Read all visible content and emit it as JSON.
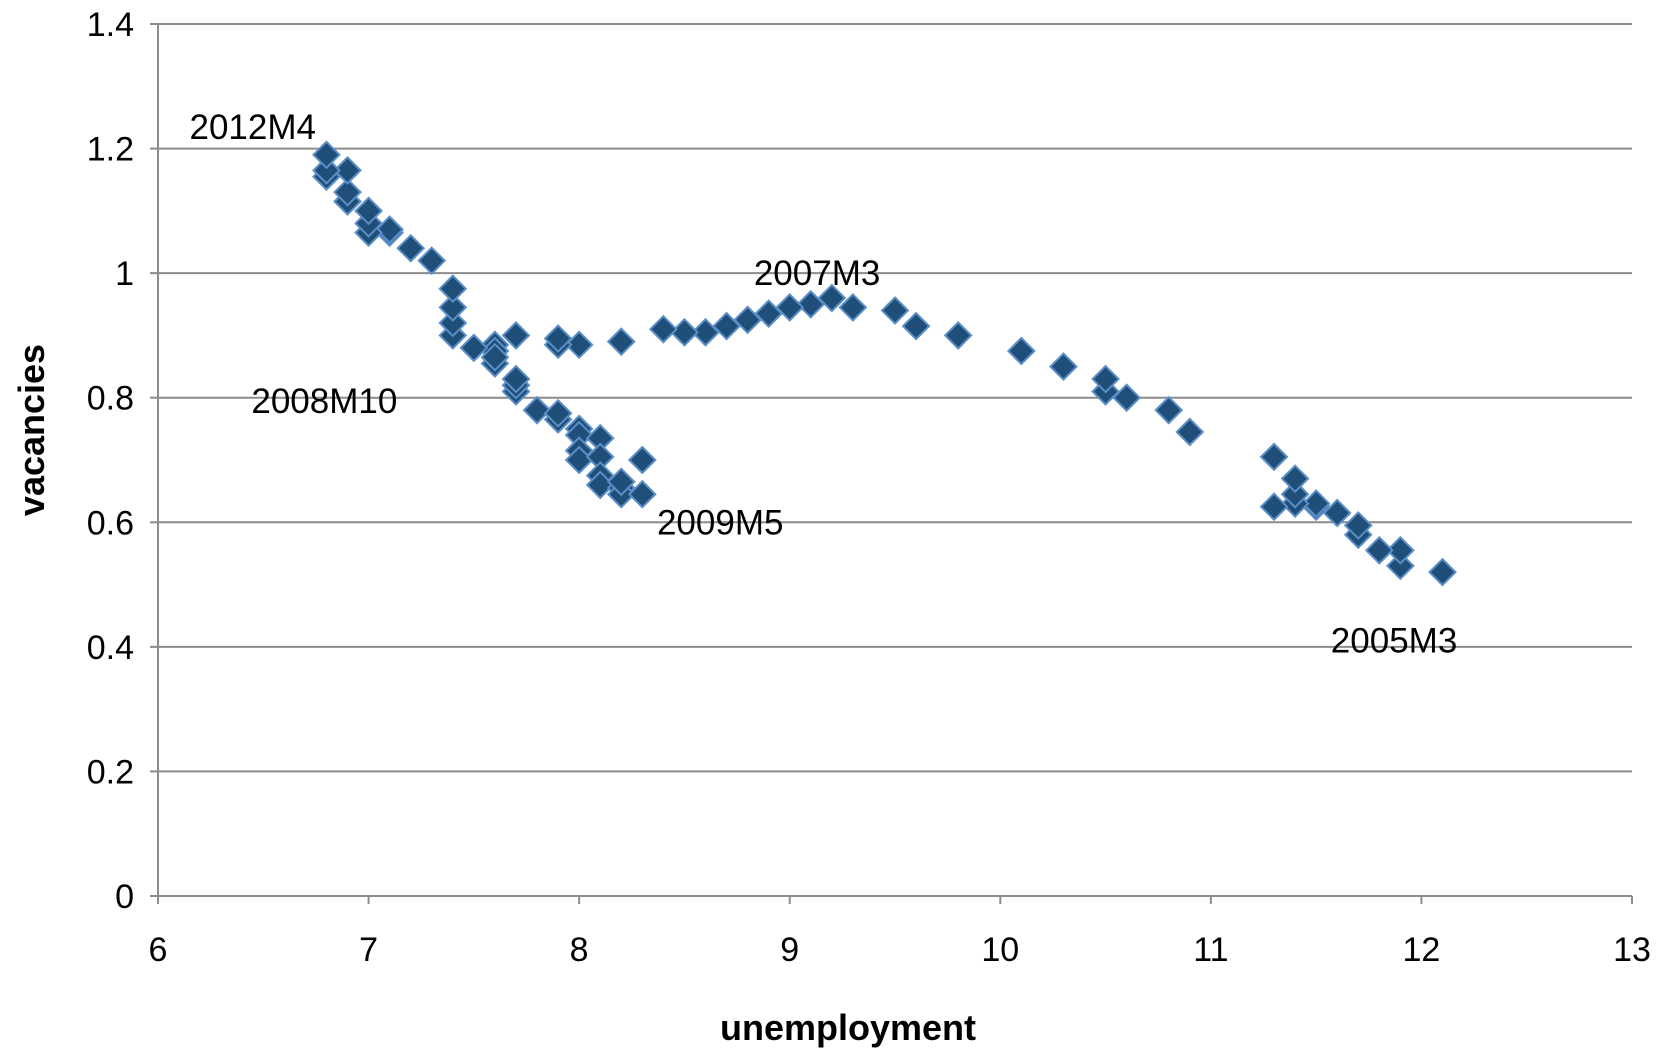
{
  "chart_data": {
    "type": "scatter",
    "title": "",
    "xlabel": "unemployment",
    "ylabel": "vacancies",
    "xlim": [
      6,
      13
    ],
    "ylim": [
      0,
      1.4
    ],
    "x_ticks": [
      "6",
      "7",
      "8",
      "9",
      "10",
      "11",
      "12",
      "13"
    ],
    "y_ticks": [
      "0",
      "0.2",
      "0.4",
      "0.6",
      "0.8",
      "1",
      "1.2",
      "1.4"
    ],
    "grid": "horizontal",
    "legend": "none",
    "marker_color": "#1f4e79",
    "marker_edge_color": "#5b8ec7",
    "marker_shape": "diamond",
    "series": [
      {
        "points": [
          [
            12.1,
            0.52
          ],
          [
            11.9,
            0.53
          ],
          [
            11.9,
            0.555
          ],
          [
            11.8,
            0.555
          ],
          [
            11.7,
            0.58
          ],
          [
            11.7,
            0.595
          ],
          [
            11.6,
            0.615
          ],
          [
            11.5,
            0.625
          ],
          [
            11.5,
            0.63
          ],
          [
            11.4,
            0.63
          ],
          [
            11.4,
            0.645
          ],
          [
            11.4,
            0.67
          ],
          [
            11.3,
            0.625
          ],
          [
            11.3,
            0.705
          ],
          [
            10.9,
            0.745
          ],
          [
            10.8,
            0.78
          ],
          [
            10.6,
            0.8
          ],
          [
            10.5,
            0.81
          ],
          [
            10.5,
            0.83
          ],
          [
            10.3,
            0.85
          ],
          [
            10.1,
            0.875
          ],
          [
            9.8,
            0.9
          ],
          [
            9.6,
            0.915
          ],
          [
            9.5,
            0.94
          ],
          [
            9.3,
            0.945
          ],
          [
            9.2,
            0.96
          ],
          [
            9.1,
            0.95
          ],
          [
            9.0,
            0.945
          ],
          [
            8.9,
            0.935
          ],
          [
            8.8,
            0.925
          ],
          [
            8.7,
            0.915
          ],
          [
            8.6,
            0.905
          ],
          [
            8.5,
            0.905
          ],
          [
            8.4,
            0.91
          ],
          [
            8.2,
            0.89
          ],
          [
            8.0,
            0.885
          ],
          [
            7.9,
            0.885
          ],
          [
            7.9,
            0.895
          ],
          [
            7.7,
            0.9
          ],
          [
            7.6,
            0.885
          ],
          [
            7.6,
            0.875
          ],
          [
            7.5,
            0.88
          ],
          [
            7.4,
            0.9
          ],
          [
            7.4,
            0.92
          ],
          [
            7.4,
            0.945
          ],
          [
            7.4,
            0.975
          ],
          [
            7.3,
            1.02
          ],
          [
            7.2,
            1.04
          ],
          [
            7.1,
            1.065
          ],
          [
            7.1,
            1.07
          ],
          [
            7.0,
            1.065
          ],
          [
            7.0,
            1.08
          ],
          [
            7.0,
            1.1
          ],
          [
            6.9,
            1.115
          ],
          [
            6.9,
            1.13
          ],
          [
            6.9,
            1.165
          ],
          [
            6.8,
            1.155
          ],
          [
            6.8,
            1.165
          ],
          [
            6.8,
            1.19
          ],
          [
            7.6,
            0.855
          ],
          [
            7.6,
            0.865
          ],
          [
            7.7,
            0.81
          ],
          [
            7.7,
            0.82
          ],
          [
            7.7,
            0.83
          ],
          [
            7.8,
            0.78
          ],
          [
            7.9,
            0.765
          ],
          [
            7.9,
            0.775
          ],
          [
            8.0,
            0.75
          ],
          [
            8.0,
            0.74
          ],
          [
            8.0,
            0.715
          ],
          [
            8.0,
            0.7
          ],
          [
            8.1,
            0.735
          ],
          [
            8.1,
            0.705
          ],
          [
            8.1,
            0.675
          ],
          [
            8.1,
            0.66
          ],
          [
            8.2,
            0.655
          ],
          [
            8.2,
            0.645
          ],
          [
            8.2,
            0.665
          ],
          [
            8.3,
            0.645
          ],
          [
            8.3,
            0.7
          ]
        ]
      }
    ],
    "annotations": [
      {
        "text": "2012M4",
        "x": 6.45,
        "y": 1.235
      },
      {
        "text": "2007M3",
        "x": 9.13,
        "y": 1.0
      },
      {
        "text": "2008M10",
        "x": 6.79,
        "y": 0.795
      },
      {
        "text": "2009M5",
        "x": 8.67,
        "y": 0.6
      },
      {
        "text": "2005M3",
        "x": 11.87,
        "y": 0.41
      }
    ]
  }
}
